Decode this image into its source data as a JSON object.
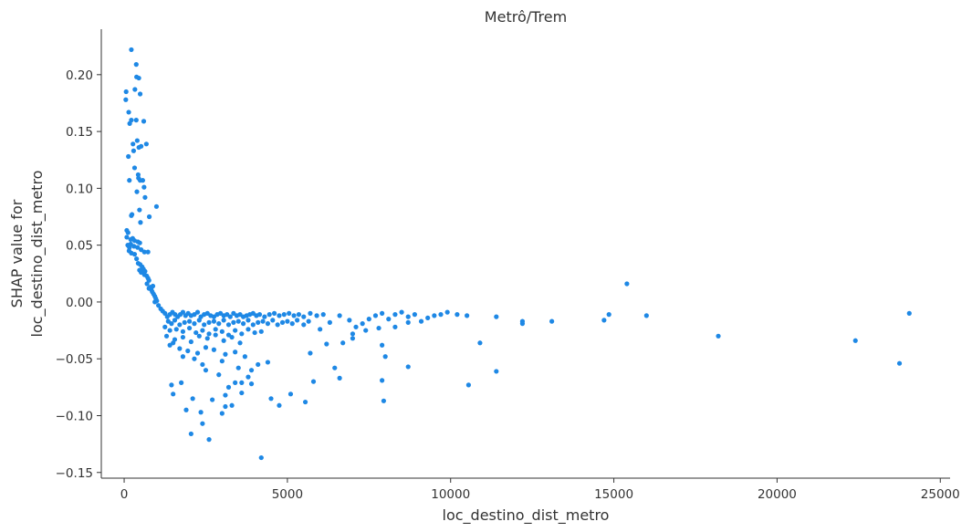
{
  "chart_data": {
    "type": "scatter",
    "title": "Metrô/Trem",
    "xlabel": "loc_destino_dist_metro",
    "ylabel_lines": [
      "SHAP value for",
      "loc_destino_dist_metro"
    ],
    "xlim": [
      -700,
      25300
    ],
    "ylim": [
      -0.155,
      0.24
    ],
    "xticks": [
      0,
      5000,
      10000,
      15000,
      20000,
      25000
    ],
    "yticks": [
      -0.15,
      -0.1,
      -0.05,
      0.0,
      0.05,
      0.1,
      0.15,
      0.2
    ],
    "xtick_labels": [
      "0",
      "5000",
      "10000",
      "15000",
      "20000",
      "25000"
    ],
    "ytick_labels": [
      "−0.15",
      "−0.10",
      "−0.05",
      "0.00",
      "0.05",
      "0.10",
      "0.15",
      "0.20"
    ],
    "grid": false,
    "color": "#1e88e5",
    "points": [
      [
        220,
        0.222
      ],
      [
        370,
        0.209
      ],
      [
        330,
        0.187
      ],
      [
        60,
        0.185
      ],
      [
        380,
        0.198
      ],
      [
        450,
        0.197
      ],
      [
        490,
        0.183
      ],
      [
        50,
        0.178
      ],
      [
        140,
        0.167
      ],
      [
        220,
        0.16
      ],
      [
        370,
        0.16
      ],
      [
        170,
        0.157
      ],
      [
        600,
        0.159
      ],
      [
        270,
        0.139
      ],
      [
        400,
        0.142
      ],
      [
        450,
        0.136
      ],
      [
        520,
        0.137
      ],
      [
        680,
        0.139
      ],
      [
        290,
        0.133
      ],
      [
        130,
        0.128
      ],
      [
        320,
        0.118
      ],
      [
        430,
        0.112
      ],
      [
        440,
        0.109
      ],
      [
        490,
        0.107
      ],
      [
        160,
        0.107
      ],
      [
        570,
        0.107
      ],
      [
        610,
        0.101
      ],
      [
        390,
        0.097
      ],
      [
        640,
        0.092
      ],
      [
        990,
        0.084
      ],
      [
        470,
        0.081
      ],
      [
        240,
        0.077
      ],
      [
        220,
        0.076
      ],
      [
        770,
        0.075
      ],
      [
        500,
        0.07
      ],
      [
        80,
        0.063
      ],
      [
        120,
        0.061
      ],
      [
        80,
        0.057
      ],
      [
        200,
        0.055
      ],
      [
        260,
        0.056
      ],
      [
        320,
        0.054
      ],
      [
        420,
        0.053
      ],
      [
        480,
        0.052
      ],
      [
        110,
        0.05
      ],
      [
        200,
        0.051
      ],
      [
        160,
        0.048
      ],
      [
        300,
        0.049
      ],
      [
        410,
        0.048
      ],
      [
        520,
        0.046
      ],
      [
        620,
        0.044
      ],
      [
        730,
        0.044
      ],
      [
        150,
        0.045
      ],
      [
        220,
        0.043
      ],
      [
        320,
        0.042
      ],
      [
        380,
        0.038
      ],
      [
        430,
        0.034
      ],
      [
        490,
        0.033
      ],
      [
        550,
        0.031
      ],
      [
        590,
        0.029
      ],
      [
        640,
        0.027
      ],
      [
        520,
        0.026
      ],
      [
        470,
        0.028
      ],
      [
        620,
        0.024
      ],
      [
        690,
        0.023
      ],
      [
        730,
        0.021
      ],
      [
        760,
        0.019
      ],
      [
        700,
        0.016
      ],
      [
        800,
        0.013
      ],
      [
        830,
        0.011
      ],
      [
        860,
        0.009
      ],
      [
        900,
        0.007
      ],
      [
        940,
        0.005
      ],
      [
        970,
        0.003
      ],
      [
        1000,
        0.001
      ],
      [
        880,
        0.014
      ],
      [
        760,
        0.012
      ],
      [
        940,
        0.0
      ],
      [
        1050,
        -0.003
      ],
      [
        1120,
        -0.006
      ],
      [
        1180,
        -0.008
      ],
      [
        1250,
        -0.01
      ],
      [
        1320,
        -0.013
      ],
      [
        1400,
        -0.011
      ],
      [
        1480,
        -0.009
      ],
      [
        1560,
        -0.011
      ],
      [
        1640,
        -0.013
      ],
      [
        1720,
        -0.011
      ],
      [
        1800,
        -0.009
      ],
      [
        1880,
        -0.012
      ],
      [
        1960,
        -0.01
      ],
      [
        2050,
        -0.012
      ],
      [
        2150,
        -0.011
      ],
      [
        2250,
        -0.009
      ],
      [
        2350,
        -0.013
      ],
      [
        2450,
        -0.011
      ],
      [
        2550,
        -0.01
      ],
      [
        2650,
        -0.012
      ],
      [
        2750,
        -0.013
      ],
      [
        2850,
        -0.011
      ],
      [
        2950,
        -0.01
      ],
      [
        3050,
        -0.012
      ],
      [
        3150,
        -0.011
      ],
      [
        3250,
        -0.013
      ],
      [
        3350,
        -0.01
      ],
      [
        3450,
        -0.012
      ],
      [
        3550,
        -0.011
      ],
      [
        3650,
        -0.013
      ],
      [
        3750,
        -0.012
      ],
      [
        3850,
        -0.011
      ],
      [
        3950,
        -0.01
      ],
      [
        4050,
        -0.012
      ],
      [
        4150,
        -0.011
      ],
      [
        4300,
        -0.013
      ],
      [
        4450,
        -0.011
      ],
      [
        4600,
        -0.01
      ],
      [
        4750,
        -0.012
      ],
      [
        4900,
        -0.011
      ],
      [
        5050,
        -0.01
      ],
      [
        5200,
        -0.012
      ],
      [
        5350,
        -0.011
      ],
      [
        5500,
        -0.013
      ],
      [
        5700,
        -0.01
      ],
      [
        5900,
        -0.012
      ],
      [
        6100,
        -0.011
      ],
      [
        1350,
        -0.017
      ],
      [
        1450,
        -0.019
      ],
      [
        1550,
        -0.016
      ],
      [
        1700,
        -0.02
      ],
      [
        1850,
        -0.018
      ],
      [
        2000,
        -0.017
      ],
      [
        2150,
        -0.019
      ],
      [
        2300,
        -0.016
      ],
      [
        2450,
        -0.02
      ],
      [
        2600,
        -0.018
      ],
      [
        2750,
        -0.017
      ],
      [
        2900,
        -0.019
      ],
      [
        3050,
        -0.016
      ],
      [
        3200,
        -0.02
      ],
      [
        3350,
        -0.018
      ],
      [
        3500,
        -0.017
      ],
      [
        3650,
        -0.019
      ],
      [
        3800,
        -0.016
      ],
      [
        3950,
        -0.02
      ],
      [
        4100,
        -0.018
      ],
      [
        4250,
        -0.017
      ],
      [
        4400,
        -0.019
      ],
      [
        4550,
        -0.016
      ],
      [
        4700,
        -0.02
      ],
      [
        4850,
        -0.018
      ],
      [
        5000,
        -0.017
      ],
      [
        5150,
        -0.019
      ],
      [
        5300,
        -0.016
      ],
      [
        5500,
        -0.02
      ],
      [
        5650,
        -0.017
      ],
      [
        1250,
        -0.022
      ],
      [
        1400,
        -0.025
      ],
      [
        1600,
        -0.024
      ],
      [
        1800,
        -0.026
      ],
      [
        2000,
        -0.023
      ],
      [
        2200,
        -0.027
      ],
      [
        2400,
        -0.025
      ],
      [
        2600,
        -0.028
      ],
      [
        2800,
        -0.024
      ],
      [
        3000,
        -0.026
      ],
      [
        3200,
        -0.029
      ],
      [
        3400,
        -0.025
      ],
      [
        3600,
        -0.028
      ],
      [
        3800,
        -0.024
      ],
      [
        4000,
        -0.027
      ],
      [
        4200,
        -0.026
      ],
      [
        1300,
        -0.03
      ],
      [
        1550,
        -0.033
      ],
      [
        1800,
        -0.031
      ],
      [
        2050,
        -0.035
      ],
      [
        2300,
        -0.03
      ],
      [
        2550,
        -0.032
      ],
      [
        2800,
        -0.029
      ],
      [
        3050,
        -0.034
      ],
      [
        3300,
        -0.031
      ],
      [
        3550,
        -0.036
      ],
      [
        1400,
        -0.038
      ],
      [
        1700,
        -0.041
      ],
      [
        1950,
        -0.043
      ],
      [
        2250,
        -0.045
      ],
      [
        2500,
        -0.04
      ],
      [
        2750,
        -0.042
      ],
      [
        3100,
        -0.046
      ],
      [
        3400,
        -0.044
      ],
      [
        3700,
        -0.048
      ],
      [
        1500,
        -0.036
      ],
      [
        1800,
        -0.048
      ],
      [
        2150,
        -0.05
      ],
      [
        2400,
        -0.055
      ],
      [
        3000,
        -0.052
      ],
      [
        3500,
        -0.058
      ],
      [
        3900,
        -0.06
      ],
      [
        4100,
        -0.055
      ],
      [
        4400,
        -0.053
      ],
      [
        2500,
        -0.06
      ],
      [
        3800,
        -0.066
      ],
      [
        2900,
        -0.064
      ],
      [
        3600,
        -0.071
      ],
      [
        1450,
        -0.073
      ],
      [
        1750,
        -0.071
      ],
      [
        3200,
        -0.075
      ],
      [
        3400,
        -0.071
      ],
      [
        3900,
        -0.072
      ],
      [
        1500,
        -0.081
      ],
      [
        2100,
        -0.085
      ],
      [
        3100,
        -0.082
      ],
      [
        3300,
        -0.091
      ],
      [
        3600,
        -0.08
      ],
      [
        3100,
        -0.092
      ],
      [
        1900,
        -0.095
      ],
      [
        2350,
        -0.097
      ],
      [
        2700,
        -0.086
      ],
      [
        3000,
        -0.098
      ],
      [
        4500,
        -0.085
      ],
      [
        4750,
        -0.091
      ],
      [
        5100,
        -0.081
      ],
      [
        5550,
        -0.088
      ],
      [
        2400,
        -0.107
      ],
      [
        2050,
        -0.116
      ],
      [
        2600,
        -0.121
      ],
      [
        4200,
        -0.137
      ],
      [
        5800,
        -0.07
      ],
      [
        6600,
        -0.067
      ],
      [
        6450,
        -0.058
      ],
      [
        5700,
        -0.045
      ],
      [
        6200,
        -0.037
      ],
      [
        6700,
        -0.036
      ],
      [
        6000,
        -0.024
      ],
      [
        6300,
        -0.018
      ],
      [
        6600,
        -0.012
      ],
      [
        6900,
        -0.016
      ],
      [
        7100,
        -0.022
      ],
      [
        7300,
        -0.019
      ],
      [
        7500,
        -0.015
      ],
      [
        7700,
        -0.012
      ],
      [
        7900,
        -0.01
      ],
      [
        8100,
        -0.015
      ],
      [
        8300,
        -0.011
      ],
      [
        8500,
        -0.009
      ],
      [
        8700,
        -0.013
      ],
      [
        8900,
        -0.011
      ],
      [
        9100,
        -0.017
      ],
      [
        9300,
        -0.014
      ],
      [
        9500,
        -0.012
      ],
      [
        9700,
        -0.011
      ],
      [
        9900,
        -0.009
      ],
      [
        10200,
        -0.011
      ],
      [
        10500,
        -0.012
      ],
      [
        7000,
        -0.028
      ],
      [
        7400,
        -0.025
      ],
      [
        7800,
        -0.023
      ],
      [
        8300,
        -0.022
      ],
      [
        8700,
        -0.018
      ],
      [
        7000,
        -0.032
      ],
      [
        7900,
        -0.038
      ],
      [
        8000,
        -0.048
      ],
      [
        8700,
        -0.057
      ],
      [
        7900,
        -0.069
      ],
      [
        7950,
        -0.087
      ],
      [
        10550,
        -0.073
      ],
      [
        10900,
        -0.036
      ],
      [
        11400,
        -0.061
      ],
      [
        11400,
        -0.013
      ],
      [
        12200,
        -0.017
      ],
      [
        12200,
        -0.019
      ],
      [
        13100,
        -0.017
      ],
      [
        14700,
        -0.016
      ],
      [
        14850,
        -0.011
      ],
      [
        15400,
        0.016
      ],
      [
        16000,
        -0.012
      ],
      [
        18200,
        -0.03
      ],
      [
        22400,
        -0.034
      ],
      [
        23750,
        -0.054
      ],
      [
        24050,
        -0.01
      ]
    ]
  }
}
